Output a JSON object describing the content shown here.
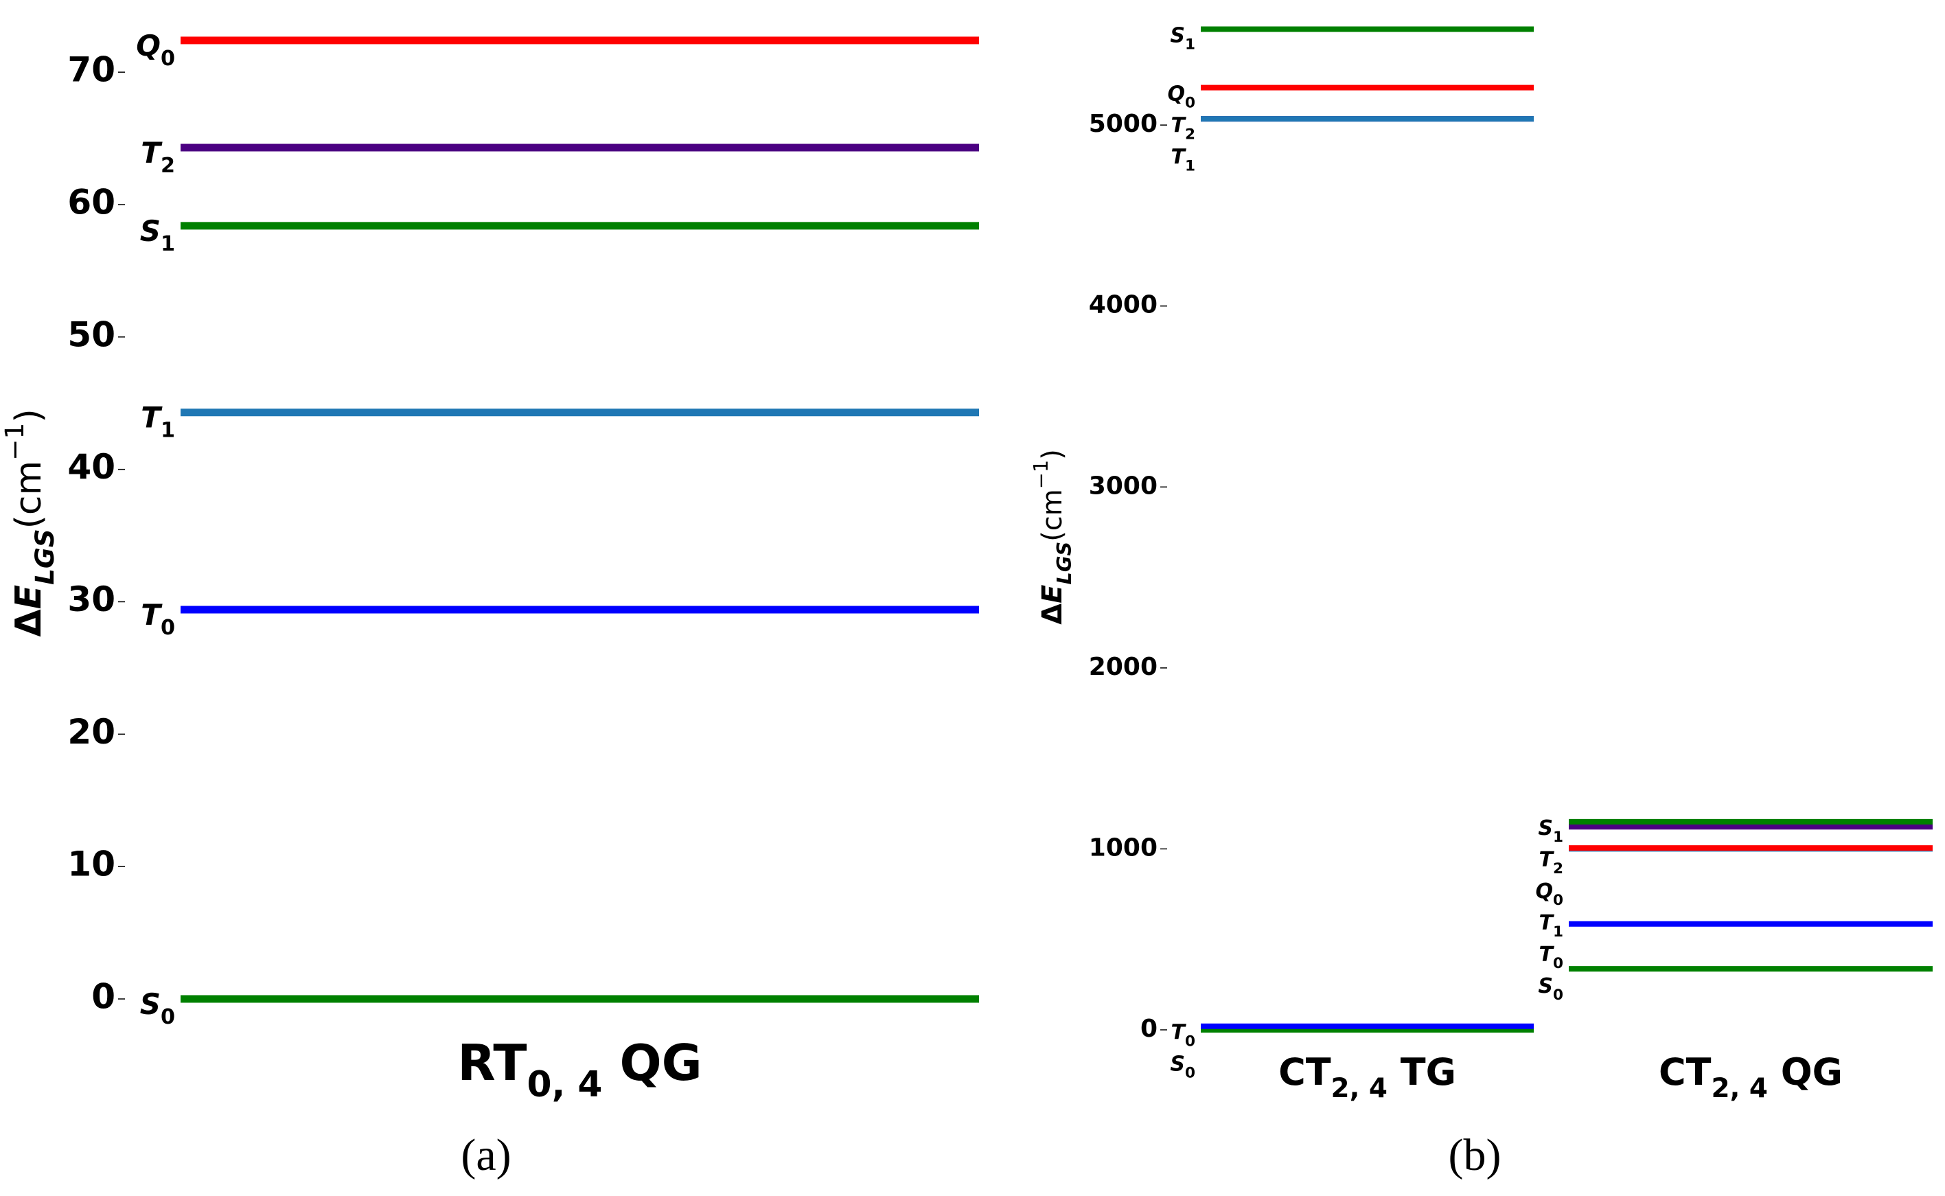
{
  "chart_data": [
    {
      "type": "energy-levels",
      "ylabel": "ΔELGS(cm−1)",
      "caption": "(a)",
      "categories": [
        "RT0, 4 QG"
      ],
      "category_colors": [
        "#b22222"
      ],
      "ylim": [
        0,
        74
      ],
      "yticks": [
        0,
        10,
        20,
        30,
        40,
        50,
        60,
        70
      ],
      "series": [
        {
          "name": "S0",
          "color": "#008000",
          "values": [
            0
          ]
        },
        {
          "name": "T0",
          "color": "#0000ff",
          "values": [
            29.4
          ]
        },
        {
          "name": "T1",
          "color": "#1f77b4",
          "values": [
            44.3
          ]
        },
        {
          "name": "S1",
          "color": "#008000",
          "values": [
            58.4
          ]
        },
        {
          "name": "T2",
          "color": "#4b0082",
          "values": [
            64.3
          ]
        },
        {
          "name": "Q0",
          "color": "#ff0000",
          "values": [
            72.4
          ]
        }
      ]
    },
    {
      "type": "energy-levels",
      "ylabel": "ΔELGS(cm−1)",
      "caption": "(b)",
      "categories": [
        "CT2, 4 TG",
        "CT2, 4 QG"
      ],
      "category_colors": [
        "#8b0000",
        "#b22222"
      ],
      "ylim": [
        0,
        5600
      ],
      "yticks": [
        0,
        1000,
        2000,
        3000,
        4000,
        5000
      ],
      "series": [
        {
          "name": "S0",
          "color": "#008000",
          "values": [
            0,
            337
          ]
        },
        {
          "name": "T0",
          "color": "#0000ff",
          "values": [
            20,
            585
          ]
        },
        {
          "name": "T2",
          "color": "#4b0082",
          "values": [
            5034,
            1122
          ]
        },
        {
          "name": "T1",
          "color": "#1f77b4",
          "values": [
            5034,
            1000
          ]
        },
        {
          "name": "Q0",
          "color": "#ff0000",
          "values": [
            5207,
            1005
          ]
        },
        {
          "name": "S1",
          "color": "#008000",
          "values": [
            5530,
            1150
          ]
        }
      ]
    }
  ]
}
